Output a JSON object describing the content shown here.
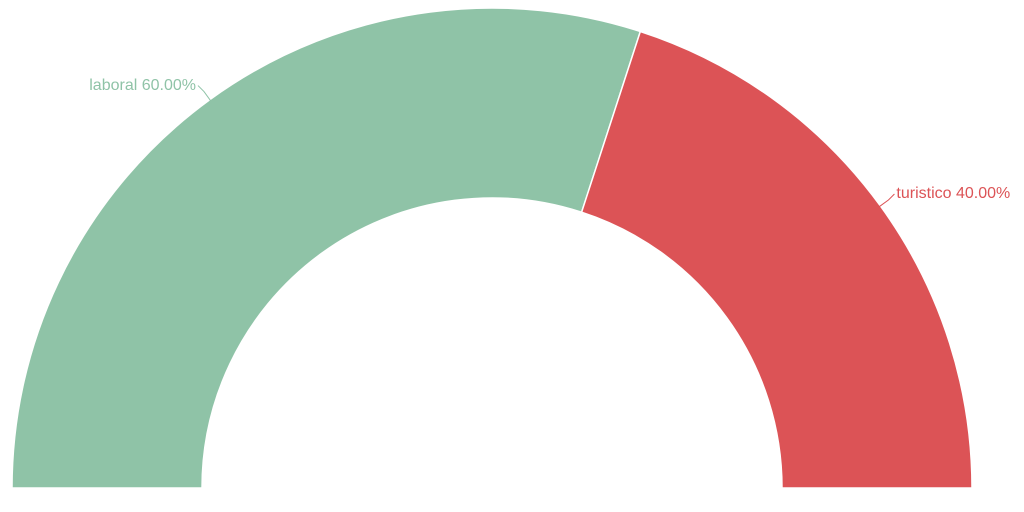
{
  "chart_data": {
    "type": "pie",
    "variant": "half-donut",
    "slices": [
      {
        "label": "laboral",
        "value": 60,
        "display": "laboral 60.00%",
        "color": "#8fc3a7"
      },
      {
        "label": "turistico",
        "value": 40,
        "display": "turistico 40.00%",
        "color": "#dc5356"
      }
    ],
    "legend": false
  }
}
